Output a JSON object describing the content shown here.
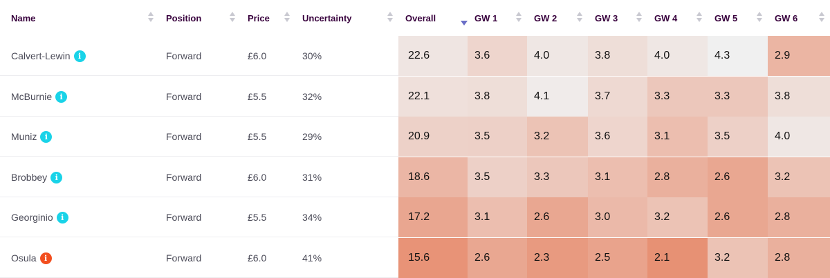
{
  "headers": {
    "name": "Name",
    "position": "Position",
    "price": "Price",
    "uncertainty": "Uncertainty",
    "overall": "Overall",
    "gw": [
      "GW 1",
      "GW 2",
      "GW 3",
      "GW 4",
      "GW 5",
      "GW 6"
    ]
  },
  "colors": {
    "info_ok": "#19d3e8",
    "info_warn": "#f24e1e"
  },
  "players": [
    {
      "name": "Calvert-Lewin",
      "info": "i",
      "info_status": "ok",
      "position": "Forward",
      "price": "£6.0",
      "uncertainty": "30%",
      "overall": "22.6",
      "gw": [
        "3.6",
        "4.0",
        "3.8",
        "4.0",
        "4.3",
        "2.9"
      ]
    },
    {
      "name": "McBurnie",
      "info": "i",
      "info_status": "ok",
      "position": "Forward",
      "price": "£5.5",
      "uncertainty": "32%",
      "overall": "22.1",
      "gw": [
        "3.8",
        "4.1",
        "3.7",
        "3.3",
        "3.3",
        "3.8"
      ]
    },
    {
      "name": "Muniz",
      "info": "i",
      "info_status": "ok",
      "position": "Forward",
      "price": "£5.5",
      "uncertainty": "29%",
      "overall": "20.9",
      "gw": [
        "3.5",
        "3.2",
        "3.6",
        "3.1",
        "3.5",
        "4.0"
      ]
    },
    {
      "name": "Brobbey",
      "info": "i",
      "info_status": "ok",
      "position": "Forward",
      "price": "£6.0",
      "uncertainty": "31%",
      "overall": "18.6",
      "gw": [
        "3.5",
        "3.3",
        "3.1",
        "2.8",
        "2.6",
        "3.2"
      ]
    },
    {
      "name": "Georginio",
      "info": "i",
      "info_status": "ok",
      "position": "Forward",
      "price": "£5.5",
      "uncertainty": "34%",
      "overall": "17.2",
      "gw": [
        "3.1",
        "2.6",
        "3.0",
        "3.2",
        "2.6",
        "2.8"
      ]
    },
    {
      "name": "Osula",
      "info": "i",
      "info_status": "warn",
      "position": "Forward",
      "price": "£6.0",
      "uncertainty": "41%",
      "overall": "15.6",
      "gw": [
        "2.6",
        "2.3",
        "2.5",
        "2.1",
        "3.2",
        "2.8"
      ]
    }
  ]
}
